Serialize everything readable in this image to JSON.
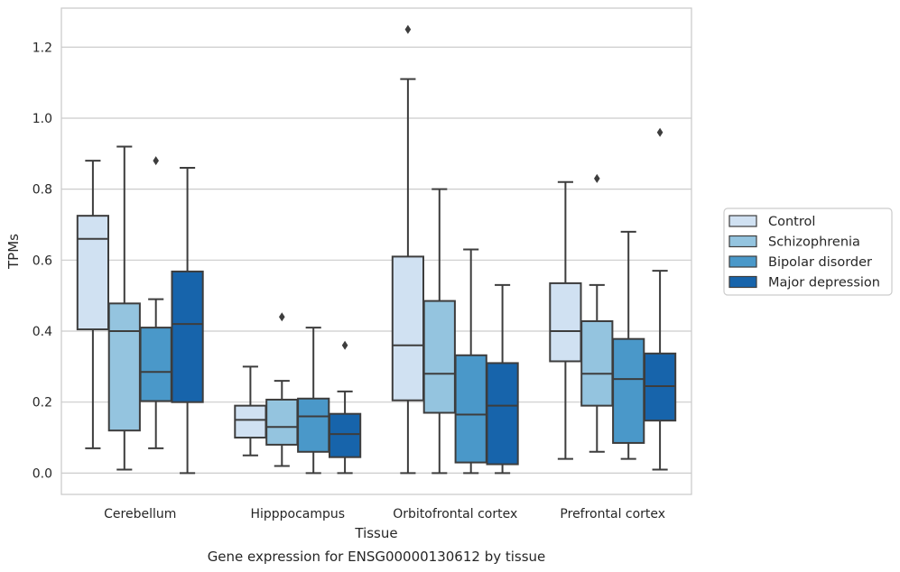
{
  "caption": "Gene expression for ENSG00000130612 by tissue",
  "chart_data": {
    "type": "box",
    "xlabel": "Tissue",
    "ylabel": "TPMs",
    "ylim": [
      -0.06,
      1.31
    ],
    "yticks": [
      "0.0",
      "0.2",
      "0.4",
      "0.6",
      "0.8",
      "1.0",
      "1.2"
    ],
    "grid": "horizontal",
    "legend_position": "right",
    "categories": [
      "Cerebellum",
      "Hipppocampus",
      "Orbitofrontal cortex",
      "Prefrontal cortex"
    ],
    "series": [
      {
        "name": "Control",
        "color": "#d0e1f2",
        "boxes": [
          {
            "whislo": 0.07,
            "q1": 0.405,
            "med": 0.66,
            "q3": 0.725,
            "whishi": 0.88,
            "fliers": []
          },
          {
            "whislo": 0.05,
            "q1": 0.1,
            "med": 0.15,
            "q3": 0.19,
            "whishi": 0.3,
            "fliers": []
          },
          {
            "whislo": 0.0,
            "q1": 0.205,
            "med": 0.36,
            "q3": 0.61,
            "whishi": 1.11,
            "fliers": [
              1.25
            ]
          },
          {
            "whislo": 0.04,
            "q1": 0.315,
            "med": 0.4,
            "q3": 0.535,
            "whishi": 0.82,
            "fliers": []
          }
        ]
      },
      {
        "name": "Schizophrenia",
        "color": "#94c4df",
        "boxes": [
          {
            "whislo": 0.01,
            "q1": 0.12,
            "med": 0.4,
            "q3": 0.478,
            "whishi": 0.92,
            "fliers": []
          },
          {
            "whislo": 0.02,
            "q1": 0.08,
            "med": 0.13,
            "q3": 0.207,
            "whishi": 0.26,
            "fliers": [
              0.44
            ]
          },
          {
            "whislo": 0.0,
            "q1": 0.17,
            "med": 0.28,
            "q3": 0.485,
            "whishi": 0.8,
            "fliers": []
          },
          {
            "whislo": 0.06,
            "q1": 0.19,
            "med": 0.28,
            "q3": 0.428,
            "whishi": 0.53,
            "fliers": [
              0.83
            ]
          }
        ]
      },
      {
        "name": "Bipolar disorder",
        "color": "#4a98c9",
        "boxes": [
          {
            "whislo": 0.07,
            "q1": 0.203,
            "med": 0.285,
            "q3": 0.41,
            "whishi": 0.49,
            "fliers": [
              0.88
            ]
          },
          {
            "whislo": 0.0,
            "q1": 0.06,
            "med": 0.16,
            "q3": 0.21,
            "whishi": 0.41,
            "fliers": []
          },
          {
            "whislo": 0.0,
            "q1": 0.03,
            "med": 0.165,
            "q3": 0.332,
            "whishi": 0.63,
            "fliers": []
          },
          {
            "whislo": 0.04,
            "q1": 0.085,
            "med": 0.265,
            "q3": 0.378,
            "whishi": 0.68,
            "fliers": []
          }
        ]
      },
      {
        "name": "Major depression",
        "color": "#1764ab",
        "boxes": [
          {
            "whislo": 0.0,
            "q1": 0.2,
            "med": 0.42,
            "q3": 0.568,
            "whishi": 0.86,
            "fliers": []
          },
          {
            "whislo": 0.0,
            "q1": 0.045,
            "med": 0.11,
            "q3": 0.167,
            "whishi": 0.23,
            "fliers": [
              0.36
            ]
          },
          {
            "whislo": 0.0,
            "q1": 0.025,
            "med": 0.19,
            "q3": 0.31,
            "whishi": 0.53,
            "fliers": []
          },
          {
            "whislo": 0.01,
            "q1": 0.148,
            "med": 0.245,
            "q3": 0.337,
            "whishi": 0.57,
            "fliers": [
              0.96
            ]
          }
        ]
      }
    ]
  }
}
